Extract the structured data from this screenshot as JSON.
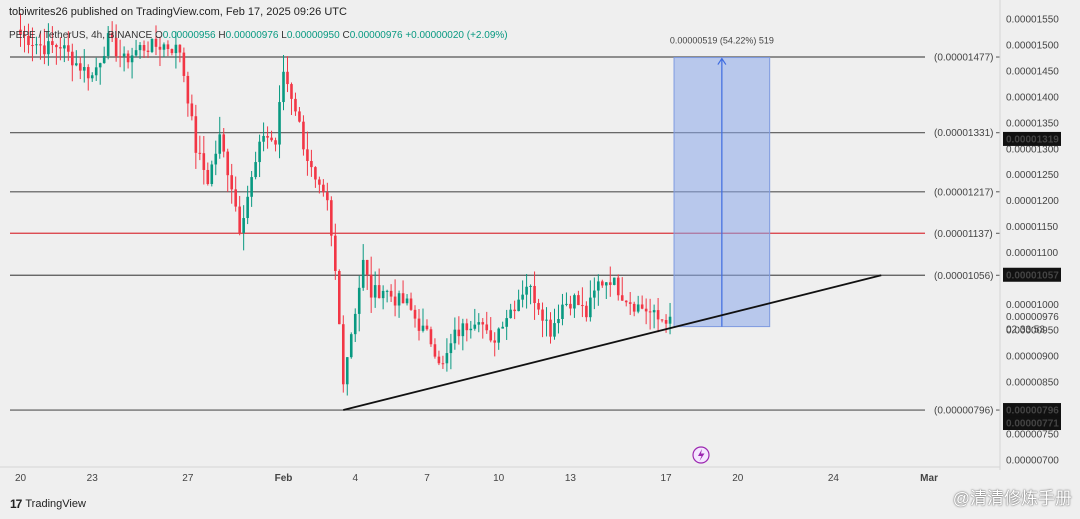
{
  "header": {
    "published_by": "tobiwrites26 published on TradingView.com, Feb 17, 2025 09:26 UTC"
  },
  "ticker": {
    "symbol": "PEPE / TetherUS, 4h, BINANCE",
    "o_label": "O",
    "o": "0.00000956",
    "h_label": "H",
    "h": "0.00000976",
    "l_label": "L",
    "l": "0.00000950",
    "c_label": "C",
    "c": "0.00000976",
    "change": "+0.00000020 (+2.09%)"
  },
  "brand": {
    "logo": "17",
    "name": "TradingView"
  },
  "watermark": "@清清修炼手册",
  "colors": {
    "up": "#089981",
    "down": "#f23645",
    "red_level": "#d9363e",
    "projection": "#8aa8ea",
    "trendline": "#111111"
  },
  "chart_data": {
    "type": "candlestick",
    "timeframe": "4h",
    "y_range": [
      6.9e-06,
      1.56e-05
    ],
    "x_ticks": [
      {
        "label": "20",
        "index": 0
      },
      {
        "label": "23",
        "index": 18
      },
      {
        "label": "27",
        "index": 42
      },
      {
        "label": "Feb",
        "index": 66
      },
      {
        "label": "4",
        "index": 84
      },
      {
        "label": "7",
        "index": 102
      },
      {
        "label": "10",
        "index": 120
      },
      {
        "label": "13",
        "index": 138
      },
      {
        "label": "17",
        "index": 162
      },
      {
        "label": "20",
        "index": 180
      },
      {
        "label": "24",
        "index": 204
      },
      {
        "label": "Mar",
        "index": 228
      }
    ],
    "y_ticks": [
      "0.00001550",
      "0.00001500",
      "0.00001450",
      "0.00001400",
      "0.00001350",
      "0.00001300",
      "0.00001250",
      "0.00001200",
      "0.00001150",
      "0.00001100",
      "0.00001000",
      "0.00000950",
      "0.00000900",
      "0.00000850",
      "0.00000750",
      "0.00000700"
    ],
    "levels": [
      {
        "price": 1.477e-05,
        "label": "(0.00001477)",
        "color": "#555555"
      },
      {
        "price": 1.331e-05,
        "label": "(0.00001331)",
        "color": "#555555"
      },
      {
        "price": 1.217e-05,
        "label": "(0.00001217)",
        "color": "#555555"
      },
      {
        "price": 1.137e-05,
        "label": "(0.00001137)",
        "color": "#d9363e"
      },
      {
        "price": 1.056e-05,
        "label": "(0.00001056)",
        "color": "#555555"
      },
      {
        "price": 7.96e-06,
        "label": "(0.00000796)",
        "color": "#555555"
      }
    ],
    "price_badges": [
      {
        "price": 1.319e-05,
        "label": "0.00001319"
      },
      {
        "price": 1.057e-05,
        "label": "0.00001057"
      },
      {
        "price": 7.96e-06,
        "label": "0.00000796"
      },
      {
        "price": 7.71e-06,
        "label": "0.00000771"
      }
    ],
    "current_price": {
      "price": 9.76e-06,
      "label": "0.00000976",
      "countdown": "02:33:53"
    },
    "trendline": [
      {
        "index": 81,
        "price": 7.96e-06
      },
      {
        "index": 216,
        "price": 1.056e-05
      }
    ],
    "projection": {
      "start_index": 164,
      "end_index": 188,
      "from_price": 9.57e-06,
      "to_price": 1.476e-05,
      "label": "0.00000519 (54.22%) 519"
    },
    "candles": {
      "start_index": 0,
      "close_anchors": [
        [
          0,
          1.52e-05
        ],
        [
          6,
          1.495e-05
        ],
        [
          10,
          1.5e-05
        ],
        [
          14,
          1.465e-05
        ],
        [
          18,
          1.44e-05
        ],
        [
          22,
          1.51e-05
        ],
        [
          26,
          1.47e-05
        ],
        [
          30,
          1.495e-05
        ],
        [
          36,
          1.5e-05
        ],
        [
          40,
          1.49e-05
        ],
        [
          42,
          1.4e-05
        ],
        [
          44,
          1.3e-05
        ],
        [
          47,
          1.24e-05
        ],
        [
          50,
          1.32e-05
        ],
        [
          53,
          1.23e-05
        ],
        [
          55,
          1.15e-05
        ],
        [
          58,
          1.24e-05
        ],
        [
          61,
          1.33e-05
        ],
        [
          64,
          1.31e-05
        ],
        [
          66,
          1.45e-05
        ],
        [
          69,
          1.38e-05
        ],
        [
          71,
          1.31e-05
        ],
        [
          74,
          1.23e-05
        ],
        [
          77,
          1.19e-05
        ],
        [
          79,
          1.06e-05
        ],
        [
          81,
          8.6e-06
        ],
        [
          84,
          9.9e-06
        ],
        [
          86,
          1.08e-05
        ],
        [
          88,
          1.02e-05
        ],
        [
          91,
          1.03e-05
        ],
        [
          94,
          1.01e-05
        ],
        [
          97,
          1e-05
        ],
        [
          100,
          9.6e-06
        ],
        [
          103,
          9.3e-06
        ],
        [
          106,
          8.8e-06
        ],
        [
          109,
          9.4e-06
        ],
        [
          112,
          9.6e-06
        ],
        [
          115,
          9.8e-06
        ],
        [
          118,
          9.2e-06
        ],
        [
          121,
          9.7e-06
        ],
        [
          124,
          1e-05
        ],
        [
          127,
          1.04e-05
        ],
        [
          130,
          1e-05
        ],
        [
          133,
          9.5e-06
        ],
        [
          136,
          1e-05
        ],
        [
          139,
          1.01e-05
        ],
        [
          142,
          9.8e-06
        ],
        [
          145,
          1.04e-05
        ],
        [
          148,
          1.05e-05
        ],
        [
          151,
          1.02e-05
        ],
        [
          154,
          1e-05
        ],
        [
          157,
          9.9e-06
        ],
        [
          160,
          9.7e-06
        ],
        [
          163,
          9.76e-06
        ]
      ]
    }
  }
}
